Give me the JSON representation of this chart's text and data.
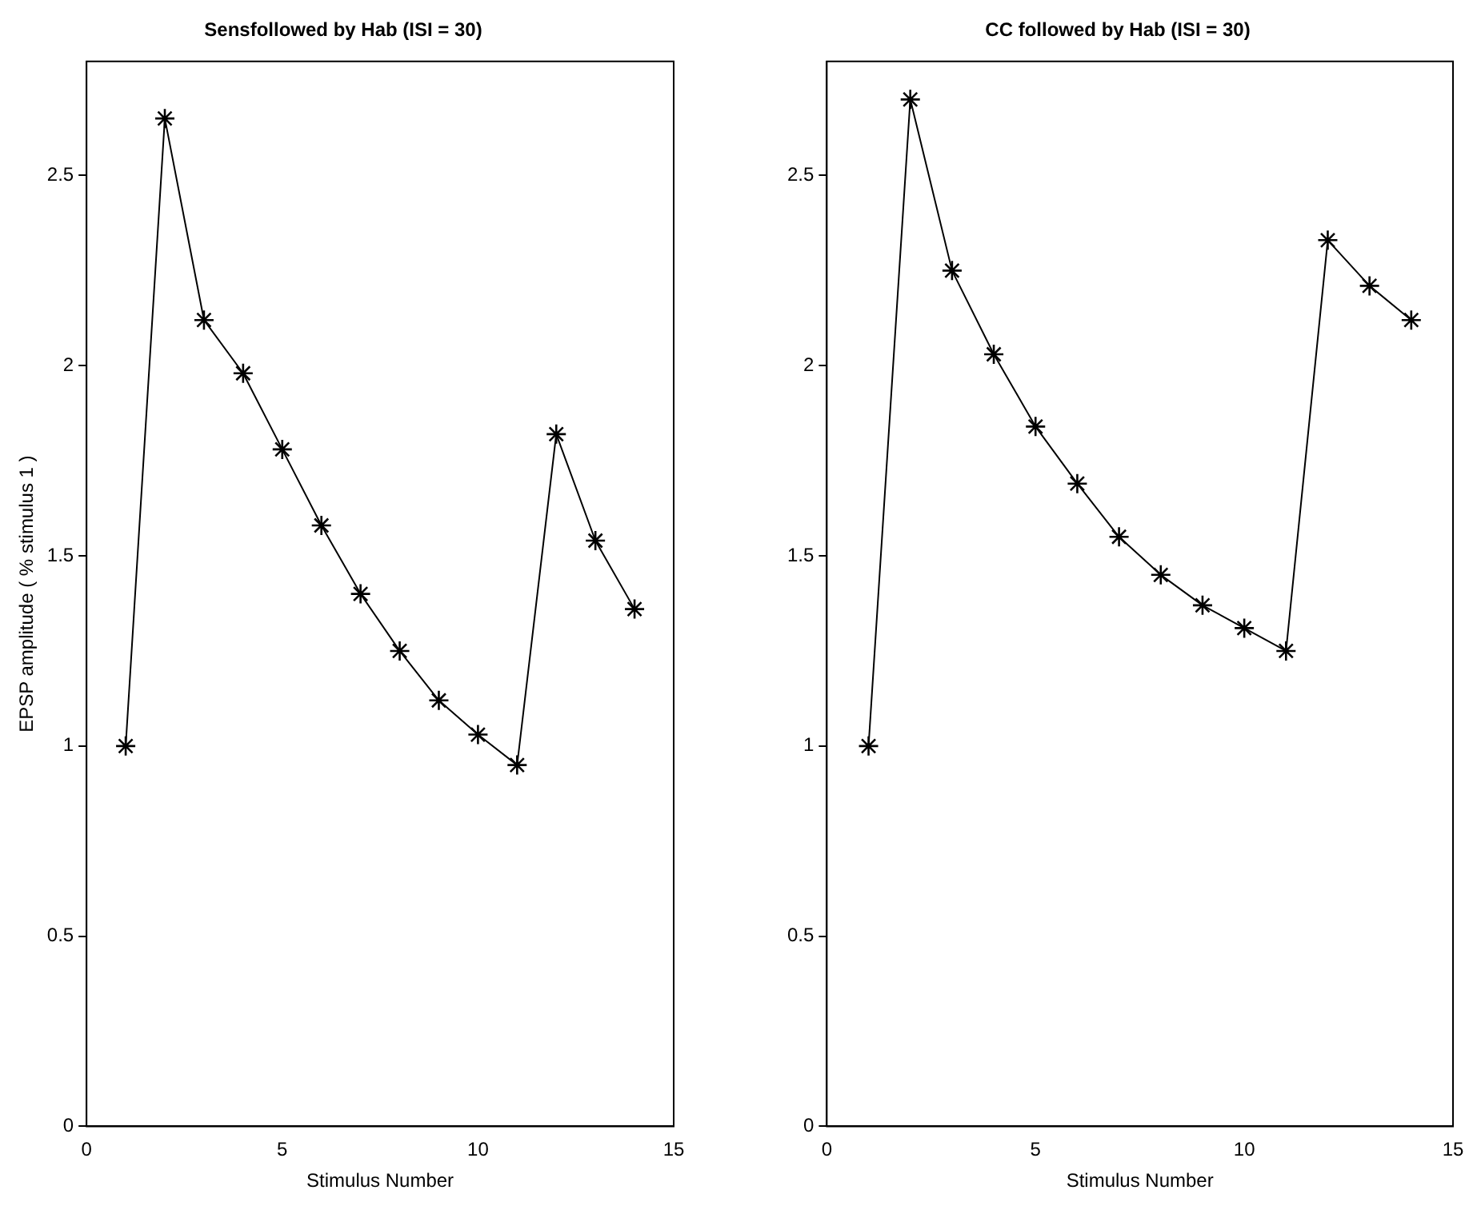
{
  "chart_data": [
    {
      "type": "line",
      "title": "Sensfollowed by Hab (ISI = 30)",
      "xlabel": "Stimulus Number",
      "ylabel": "EPSP amplitude ( % stimulus 1 )",
      "x": [
        1,
        2,
        3,
        4,
        5,
        6,
        7,
        8,
        9,
        10,
        11,
        12,
        13,
        14
      ],
      "series": [
        {
          "color": "#000000",
          "values": [
            1.0,
            2.65,
            2.12,
            1.98,
            1.78,
            1.58,
            1.4,
            1.25,
            1.12,
            1.03,
            0.95,
            1.82,
            1.54,
            1.36
          ]
        }
      ],
      "xlim": [
        0,
        15
      ],
      "xticks": [
        0,
        5,
        10,
        15
      ],
      "ylim": [
        0,
        2.8
      ],
      "yticks": [
        0,
        0.5,
        1,
        1.5,
        2,
        2.5
      ],
      "marker": "cross",
      "grid": false,
      "legend": false
    },
    {
      "type": "line",
      "title": "CC followed by Hab (ISI = 30)",
      "xlabel": "Stimulus Number",
      "x": [
        1,
        2,
        3,
        4,
        5,
        6,
        7,
        8,
        9,
        10,
        11,
        12,
        13,
        14
      ],
      "series": [
        {
          "color": "#000000",
          "values": [
            1.0,
            2.7,
            2.25,
            2.03,
            1.84,
            1.69,
            1.55,
            1.45,
            1.37,
            1.31,
            1.25,
            2.33,
            2.21,
            2.12
          ]
        }
      ],
      "xlim": [
        0,
        15
      ],
      "xticks": [
        0,
        5,
        10,
        15
      ],
      "ylim": [
        0,
        2.8
      ],
      "yticks": [
        0,
        0.5,
        1,
        1.5,
        2,
        2.5
      ],
      "marker": "cross",
      "grid": false,
      "legend": false
    }
  ]
}
